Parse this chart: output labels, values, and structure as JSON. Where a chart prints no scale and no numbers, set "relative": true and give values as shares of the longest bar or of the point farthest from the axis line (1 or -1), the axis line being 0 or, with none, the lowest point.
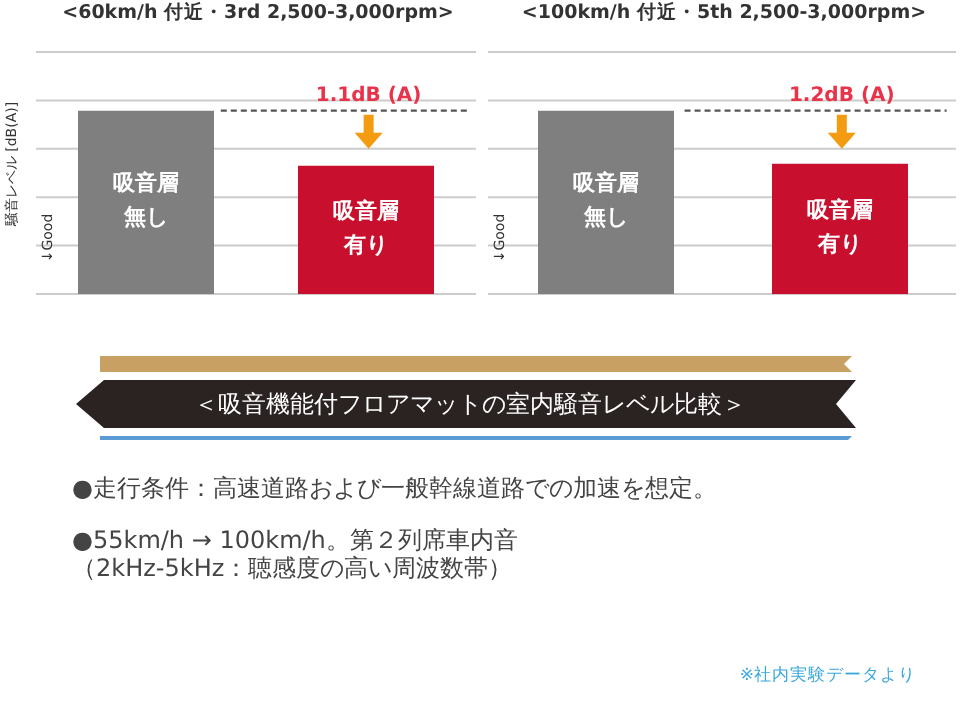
{
  "chart_data": [
    {
      "type": "bar",
      "title": "<60km/h 付近・3rd 2,500-3,000rpm>",
      "ylabel": "騒音レベル [dB(A)]",
      "annotations": [
        "↓Good"
      ],
      "categories": [
        "吸音層無し",
        "吸音層有り"
      ],
      "values": [
        1,
        0.7
      ],
      "colors": [
        "#7f7f7f",
        "#c8102e"
      ],
      "relative": true,
      "grid": "y",
      "tick_labels": false,
      "ref_lines": [
        {
          "axis": "y",
          "value": 1,
          "label": "1.1dB (A)",
          "color": "#555555",
          "line_style": "dashed"
        }
      ]
    },
    {
      "type": "bar",
      "title": "<100km/h 付近・5th 2,500-3,000rpm>",
      "annotations": [
        "↓Good"
      ],
      "categories": [
        "吸音層無し",
        "吸音層有り"
      ],
      "values": [
        1,
        0.71
      ],
      "colors": [
        "#7f7f7f",
        "#c8102e"
      ],
      "relative": true,
      "grid": "y",
      "tick_labels": false,
      "ref_lines": [
        {
          "axis": "y",
          "value": 1,
          "label": "1.2dB (A)",
          "color": "#555555",
          "line_style": "dashed"
        }
      ]
    },
    {
      "type": "other",
      "title": "＜吸音機能付フロアマットの室内騒音レベル比較＞",
      "annotations": [
        "●走行条件：高速道路および一般幹線道路での加速を想定。",
        "●55km/h → 100km/h。第２列席車内音",
        "（2kHz-5kHz：聴感度の高い周波数帯）",
        "※社内実験データより"
      ]
    }
  ]
}
